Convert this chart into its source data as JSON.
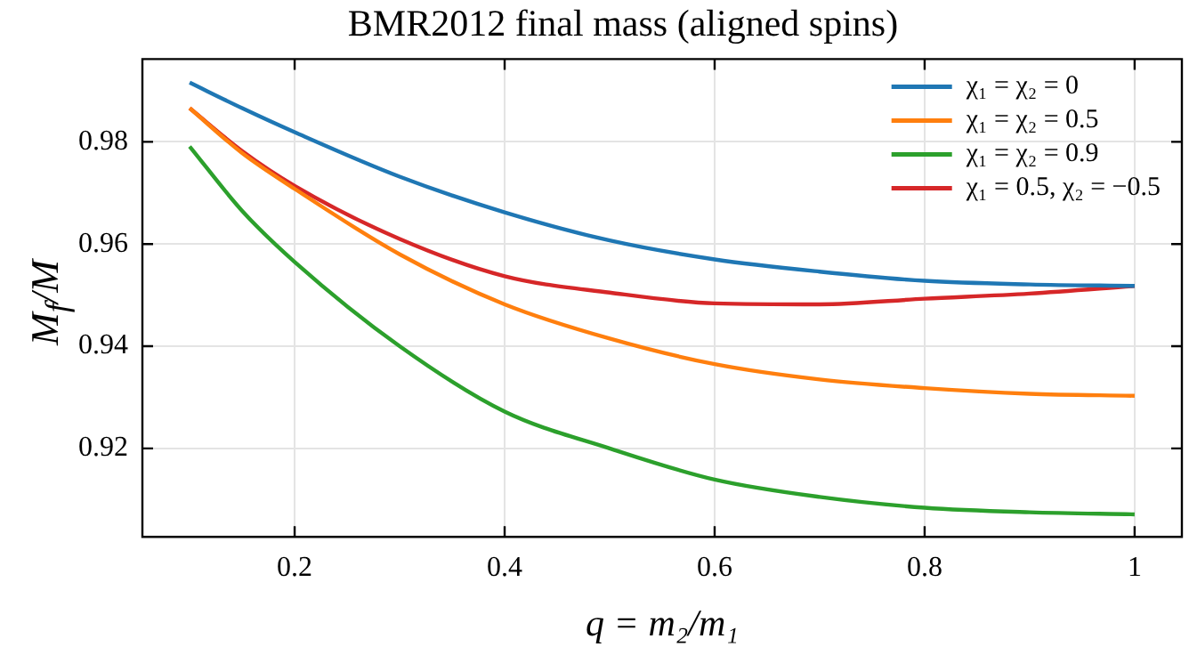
{
  "chart_data": {
    "type": "line",
    "title": "BMR2012 final mass (aligned spins)",
    "xlabel": "q = m₂/m₁",
    "ylabel": "M$_{f}$/M",
    "x": [
      0.1,
      0.15,
      0.2,
      0.3,
      0.4,
      0.5,
      0.6,
      0.7,
      0.8,
      0.9,
      1.0
    ],
    "series": [
      {
        "name": "χ₁ = χ₂ = 0",
        "color": "#1f77b4",
        "values": [
          0.9916,
          0.9866,
          0.9819,
          0.9732,
          0.9662,
          0.9607,
          0.957,
          0.9546,
          0.9528,
          0.9521,
          0.9518
        ]
      },
      {
        "name": "χ₁ = χ₂ = 0.5",
        "color": "#ff7f0e",
        "values": [
          0.9866,
          0.9778,
          0.9708,
          0.958,
          0.9482,
          0.9415,
          0.9365,
          0.9335,
          0.9318,
          0.9307,
          0.9303
        ]
      },
      {
        "name": "χ₁ = χ₂ = 0.9",
        "color": "#2ca02c",
        "values": [
          0.9791,
          0.9665,
          0.9565,
          0.94,
          0.9272,
          0.92,
          0.9139,
          0.9105,
          0.9084,
          0.9075,
          0.9071
        ]
      },
      {
        "name": "χ₁ = 0.5, χ₂ = −0.5",
        "color": "#d62728",
        "values": [
          0.9866,
          0.9782,
          0.9714,
          0.961,
          0.9537,
          0.9505,
          0.9484,
          0.9482,
          0.9493,
          0.9503,
          0.9518
        ]
      }
    ],
    "xlim": [
      0.055,
      1.045
    ],
    "ylim": [
      0.9027,
      0.9962
    ],
    "xticks": [
      0.2,
      0.4,
      0.6,
      0.8,
      1.0
    ],
    "yticks": [
      0.92,
      0.94,
      0.96,
      0.98
    ],
    "grid": true,
    "legend": "top right",
    "marker": "none",
    "line_style": "solid"
  }
}
